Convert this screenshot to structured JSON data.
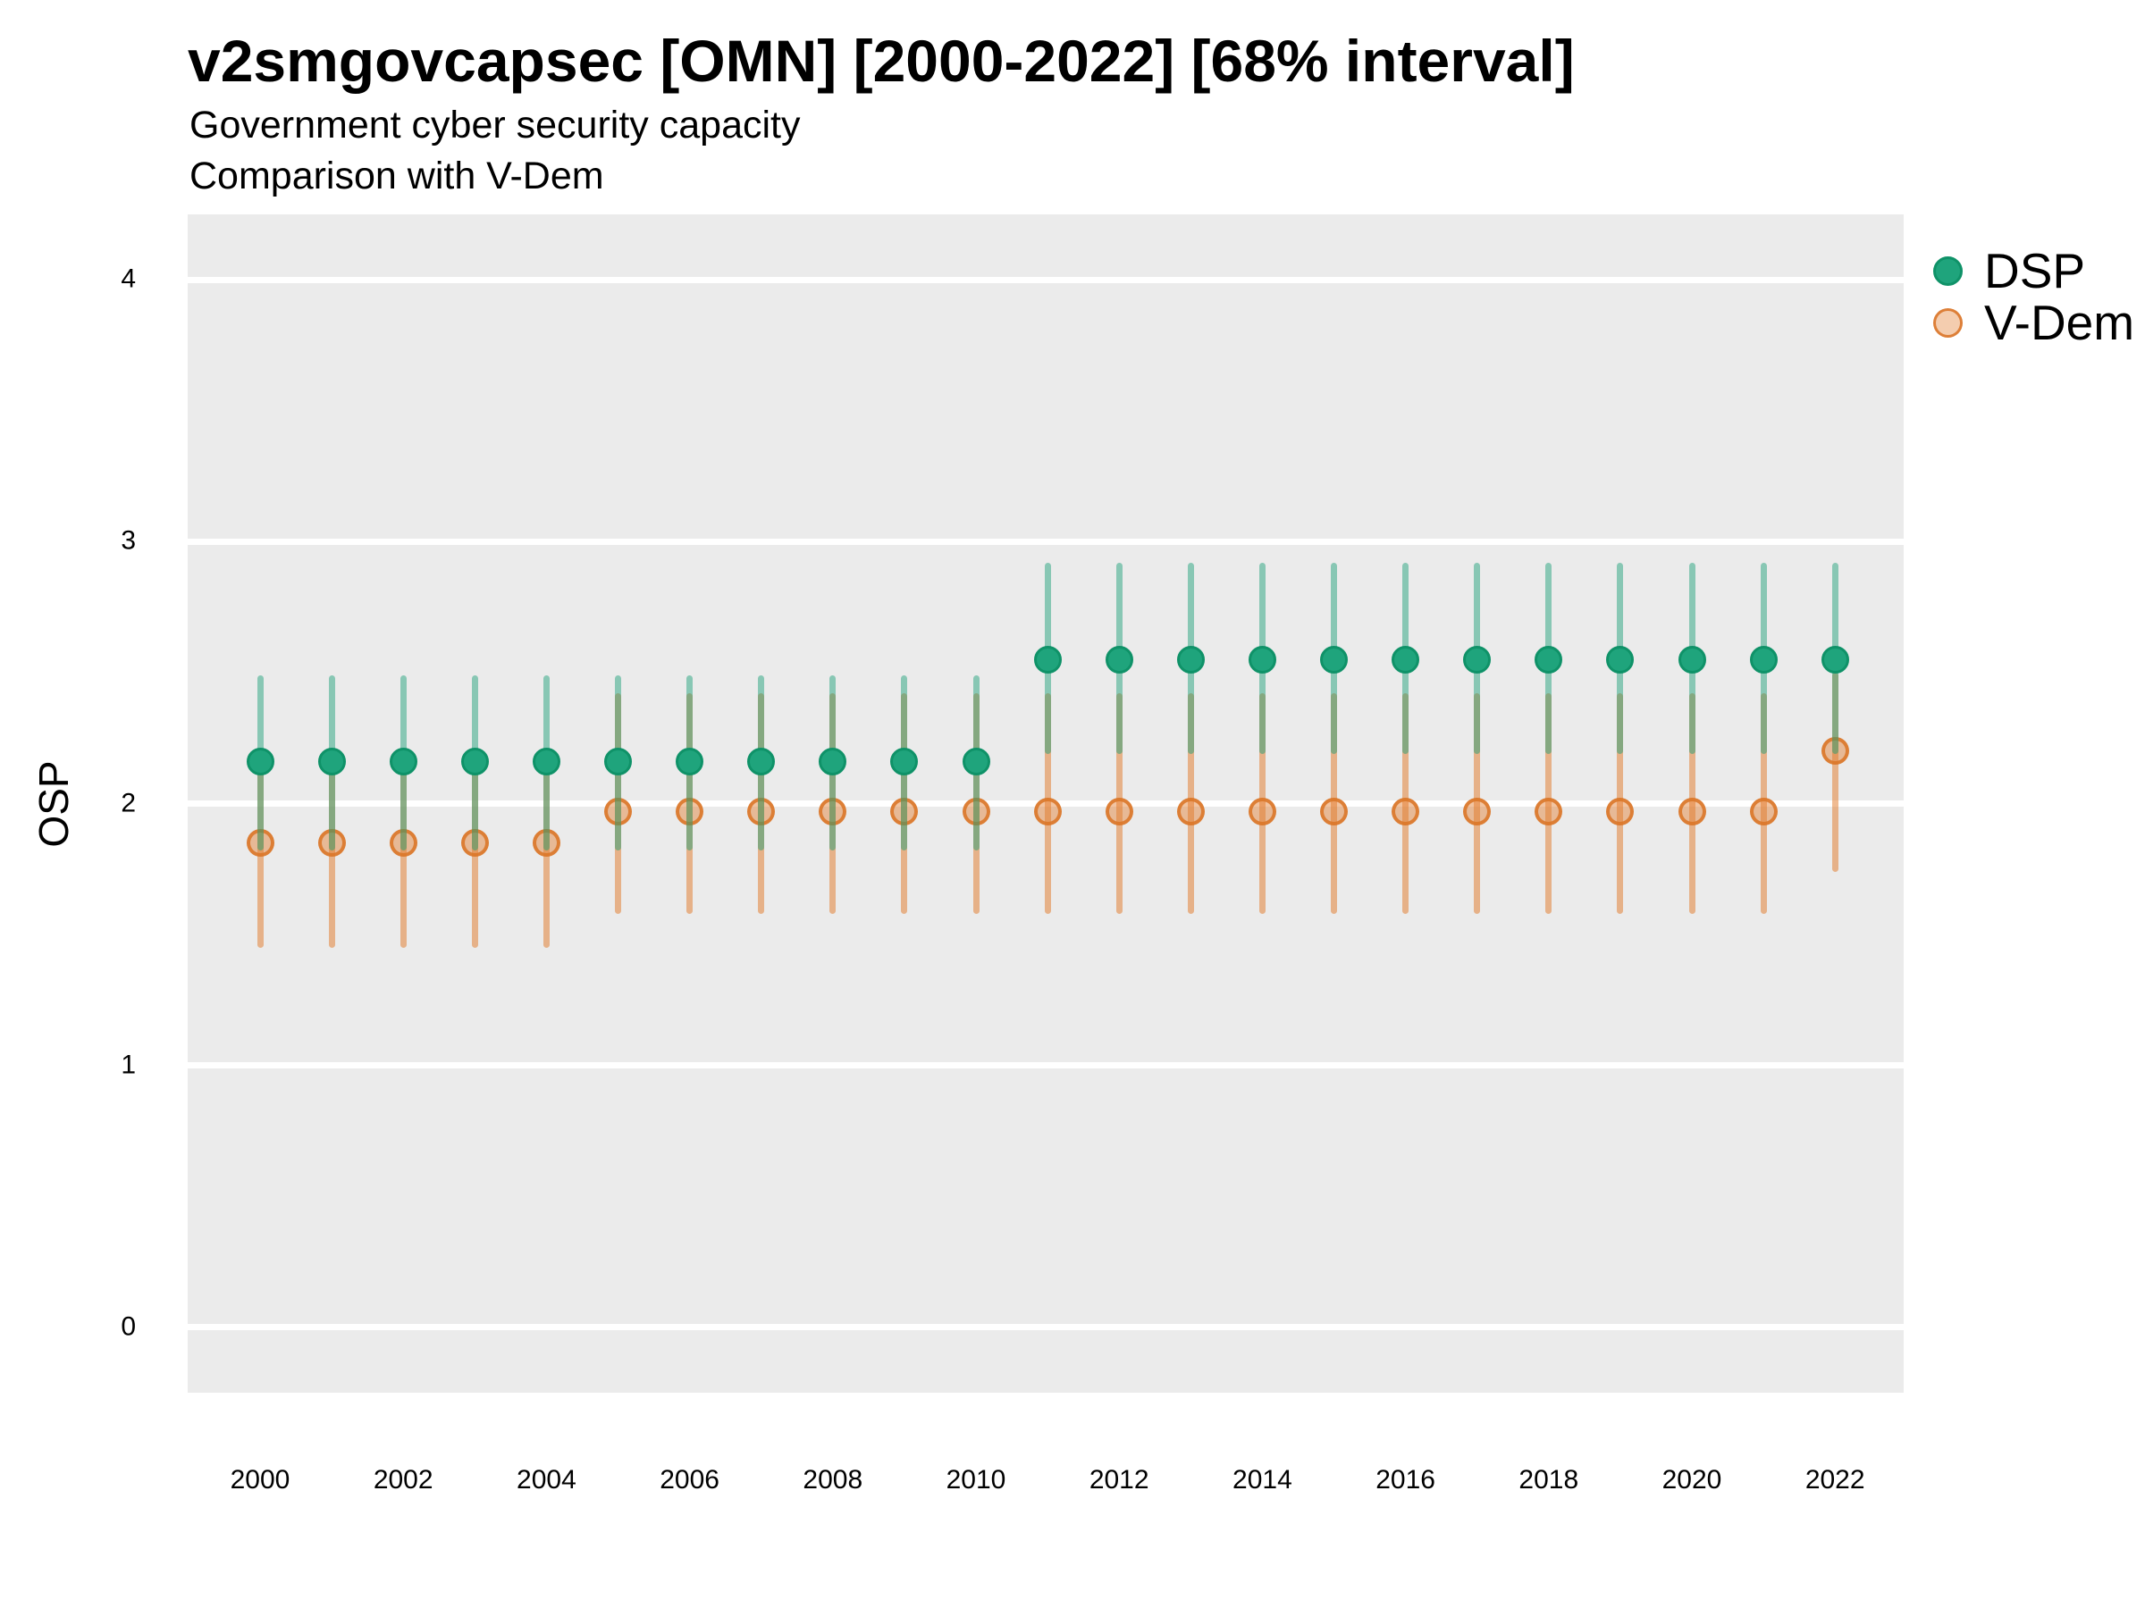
{
  "figure": {
    "title": "v2smgovcapsec [OMN] [2000-2022] [68% interval]",
    "subtitle": "Government cyber security capacity",
    "subtitle2": "Comparison with V-Dem"
  },
  "colors": {
    "text": "#000000",
    "panel_bg": "#EBEBEB",
    "grid": "#FFFFFF",
    "dsp_bar": "rgba(27,158,119,0.48)",
    "dsp_fill": "#1FA47C",
    "dsp_stroke": "#0F9268",
    "vdem_bar": "rgba(226,124,46,0.52)",
    "vdem_fill": "rgba(226,124,46,0.45)",
    "vdem_legend_fill": "rgba(226,124,46,0.38)",
    "vdem_stroke": "rgba(219,117,40,0.88)"
  },
  "chart_data": {
    "type": "pointrange",
    "title": "v2smgovcapsec [OMN] [2000-2022] [68% interval]",
    "subtitle": "Government cyber security capacity",
    "subtitle2": "Comparison with V-Dem",
    "xlabel": "",
    "ylabel": "OSP",
    "interval": "68%",
    "legend_position": "right",
    "grid": "major horizontal white lines on grey panel",
    "x_axis": {
      "ticks": [
        2000,
        2002,
        2004,
        2006,
        2008,
        2010,
        2012,
        2014,
        2016,
        2018,
        2020,
        2022
      ],
      "range": [
        2000,
        2022
      ]
    },
    "y_axis": {
      "ticks": [
        0,
        1,
        2,
        3,
        4
      ],
      "lim": [
        -0.25,
        4.25
      ]
    },
    "series": [
      {
        "name": "DSP",
        "color_key": "dsp",
        "points": [
          {
            "year": 2000,
            "est": 2.16,
            "lo": 1.82,
            "hi": 2.49
          },
          {
            "year": 2001,
            "est": 2.16,
            "lo": 1.82,
            "hi": 2.49
          },
          {
            "year": 2002,
            "est": 2.16,
            "lo": 1.82,
            "hi": 2.49
          },
          {
            "year": 2003,
            "est": 2.16,
            "lo": 1.82,
            "hi": 2.49
          },
          {
            "year": 2004,
            "est": 2.16,
            "lo": 1.82,
            "hi": 2.49
          },
          {
            "year": 2005,
            "est": 2.16,
            "lo": 1.82,
            "hi": 2.49
          },
          {
            "year": 2006,
            "est": 2.16,
            "lo": 1.82,
            "hi": 2.49
          },
          {
            "year": 2007,
            "est": 2.16,
            "lo": 1.82,
            "hi": 2.49
          },
          {
            "year": 2008,
            "est": 2.16,
            "lo": 1.82,
            "hi": 2.49
          },
          {
            "year": 2009,
            "est": 2.16,
            "lo": 1.82,
            "hi": 2.49
          },
          {
            "year": 2010,
            "est": 2.16,
            "lo": 1.82,
            "hi": 2.49
          },
          {
            "year": 2011,
            "est": 2.55,
            "lo": 2.19,
            "hi": 2.92
          },
          {
            "year": 2012,
            "est": 2.55,
            "lo": 2.19,
            "hi": 2.92
          },
          {
            "year": 2013,
            "est": 2.55,
            "lo": 2.19,
            "hi": 2.92
          },
          {
            "year": 2014,
            "est": 2.55,
            "lo": 2.19,
            "hi": 2.92
          },
          {
            "year": 2015,
            "est": 2.55,
            "lo": 2.19,
            "hi": 2.92
          },
          {
            "year": 2016,
            "est": 2.55,
            "lo": 2.19,
            "hi": 2.92
          },
          {
            "year": 2017,
            "est": 2.55,
            "lo": 2.19,
            "hi": 2.92
          },
          {
            "year": 2018,
            "est": 2.55,
            "lo": 2.19,
            "hi": 2.92
          },
          {
            "year": 2019,
            "est": 2.55,
            "lo": 2.19,
            "hi": 2.92
          },
          {
            "year": 2020,
            "est": 2.55,
            "lo": 2.19,
            "hi": 2.92
          },
          {
            "year": 2021,
            "est": 2.55,
            "lo": 2.19,
            "hi": 2.92
          },
          {
            "year": 2022,
            "est": 2.55,
            "lo": 2.19,
            "hi": 2.92
          }
        ]
      },
      {
        "name": "V-Dem",
        "color_key": "vdem",
        "points": [
          {
            "year": 2000,
            "est": 1.85,
            "lo": 1.45,
            "hi": 2.18
          },
          {
            "year": 2001,
            "est": 1.85,
            "lo": 1.45,
            "hi": 2.18
          },
          {
            "year": 2002,
            "est": 1.85,
            "lo": 1.45,
            "hi": 2.18
          },
          {
            "year": 2003,
            "est": 1.85,
            "lo": 1.45,
            "hi": 2.18
          },
          {
            "year": 2004,
            "est": 1.85,
            "lo": 1.45,
            "hi": 2.18
          },
          {
            "year": 2005,
            "est": 1.97,
            "lo": 1.58,
            "hi": 2.42
          },
          {
            "year": 2006,
            "est": 1.97,
            "lo": 1.58,
            "hi": 2.42
          },
          {
            "year": 2007,
            "est": 1.97,
            "lo": 1.58,
            "hi": 2.42
          },
          {
            "year": 2008,
            "est": 1.97,
            "lo": 1.58,
            "hi": 2.42
          },
          {
            "year": 2009,
            "est": 1.97,
            "lo": 1.58,
            "hi": 2.42
          },
          {
            "year": 2010,
            "est": 1.97,
            "lo": 1.58,
            "hi": 2.42
          },
          {
            "year": 2011,
            "est": 1.97,
            "lo": 1.58,
            "hi": 2.42
          },
          {
            "year": 2012,
            "est": 1.97,
            "lo": 1.58,
            "hi": 2.42
          },
          {
            "year": 2013,
            "est": 1.97,
            "lo": 1.58,
            "hi": 2.42
          },
          {
            "year": 2014,
            "est": 1.97,
            "lo": 1.58,
            "hi": 2.42
          },
          {
            "year": 2015,
            "est": 1.97,
            "lo": 1.58,
            "hi": 2.42
          },
          {
            "year": 2016,
            "est": 1.97,
            "lo": 1.58,
            "hi": 2.42
          },
          {
            "year": 2017,
            "est": 1.97,
            "lo": 1.58,
            "hi": 2.42
          },
          {
            "year": 2018,
            "est": 1.97,
            "lo": 1.58,
            "hi": 2.42
          },
          {
            "year": 2019,
            "est": 1.97,
            "lo": 1.58,
            "hi": 2.42
          },
          {
            "year": 2020,
            "est": 1.97,
            "lo": 1.58,
            "hi": 2.42
          },
          {
            "year": 2021,
            "est": 1.97,
            "lo": 1.58,
            "hi": 2.42
          },
          {
            "year": 2022,
            "est": 2.2,
            "lo": 1.74,
            "hi": 2.5
          }
        ]
      }
    ]
  }
}
